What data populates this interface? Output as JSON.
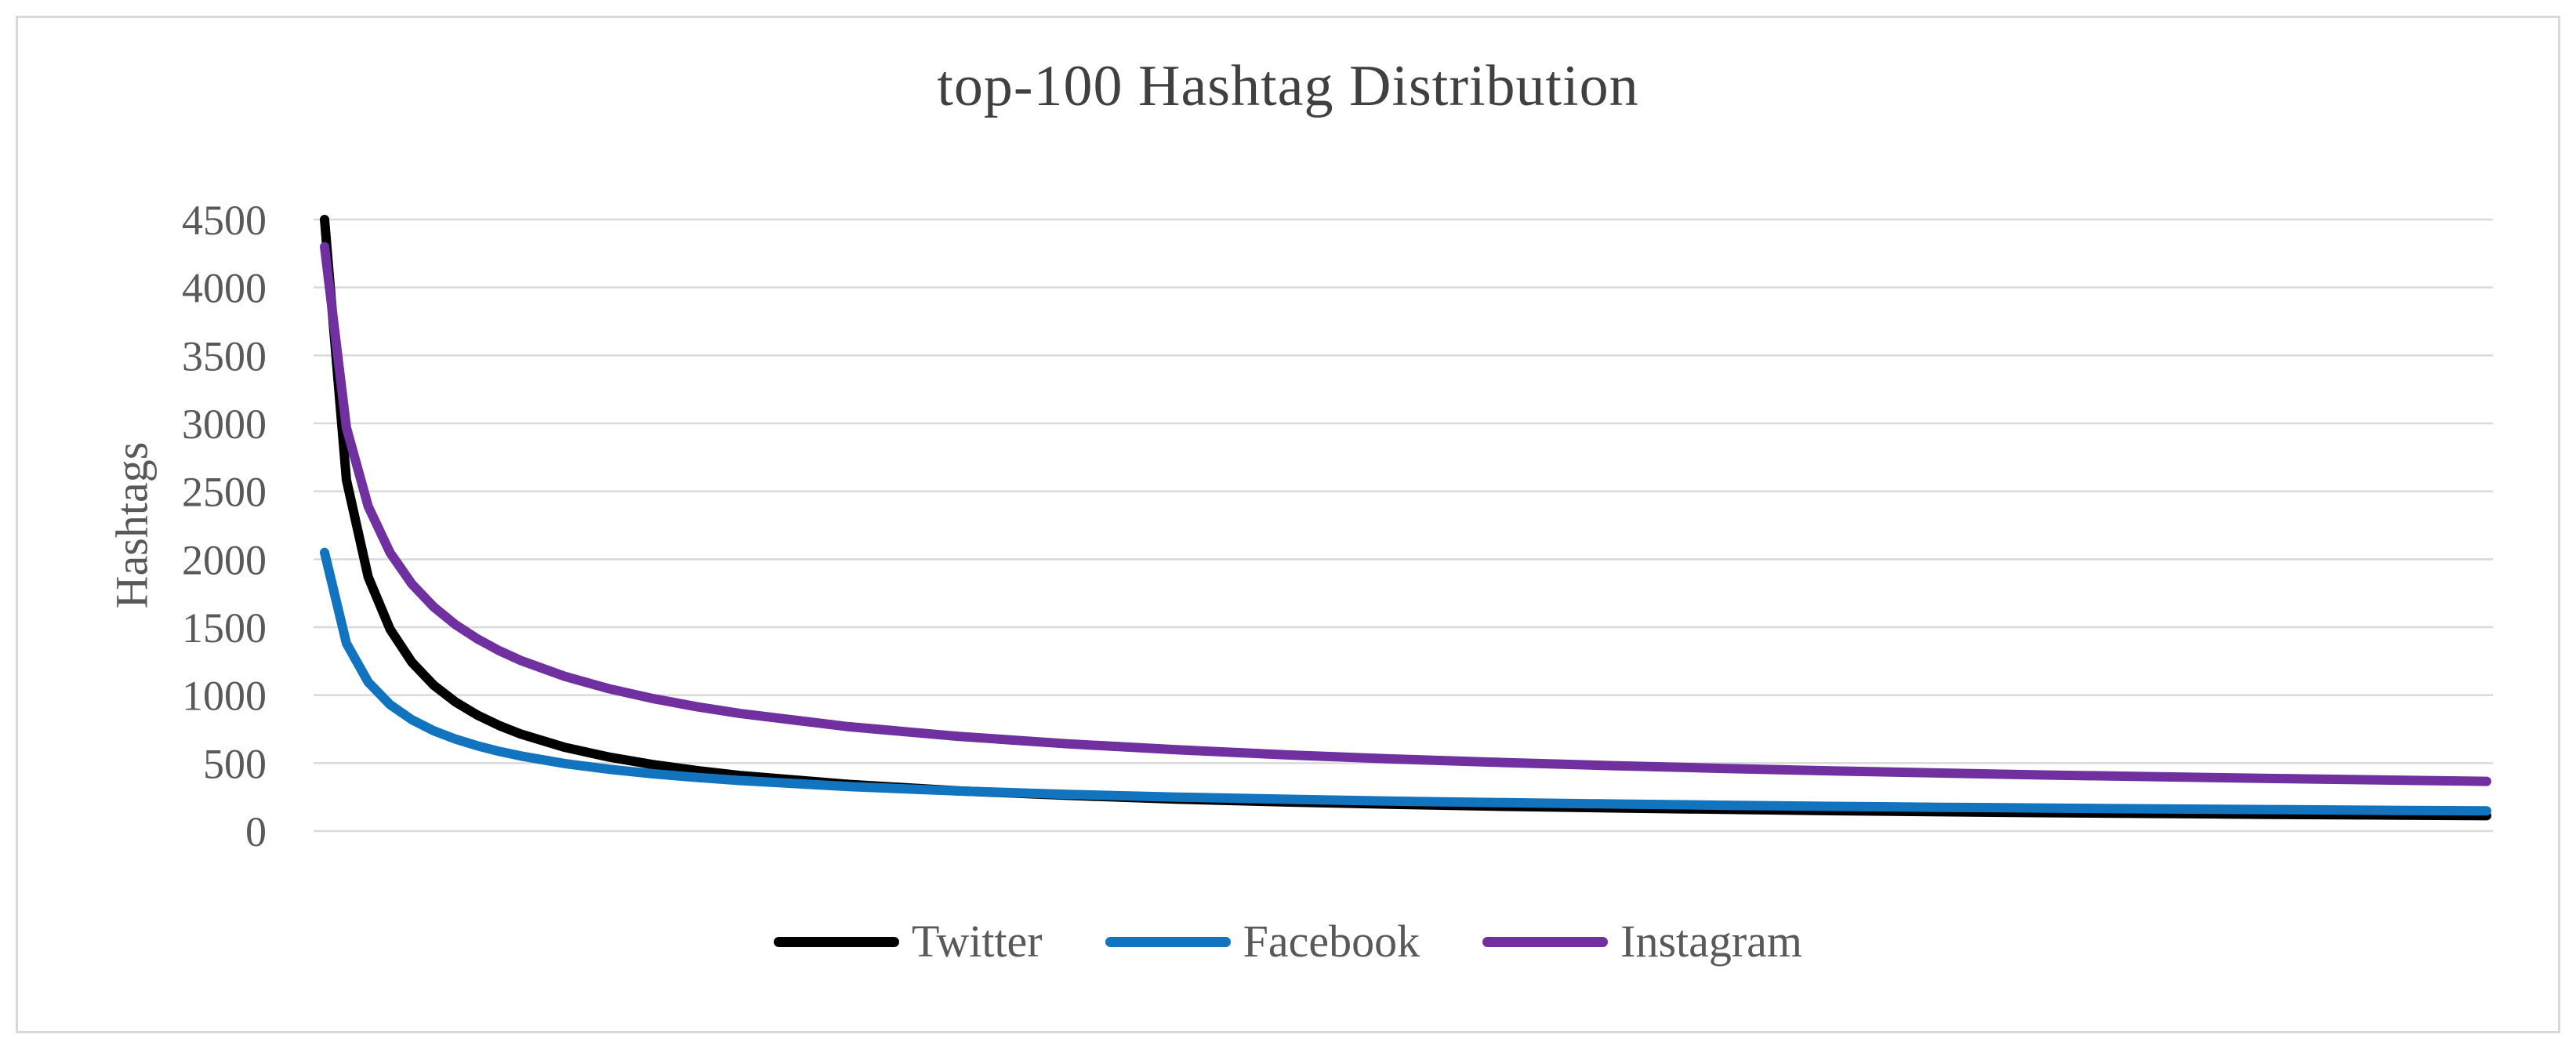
{
  "frame": {
    "background": "#ffffff",
    "border_color": "#d9d9d9"
  },
  "styles": {
    "title_color": "#404040",
    "text_color": "#595959",
    "gridline_color": "#d9d9d9",
    "line_width": 12
  },
  "chart_data": {
    "type": "line",
    "title": "top-100 Hashtag Distribution",
    "xlabel": "",
    "ylabel": "Hashtags",
    "grid": "horizontal",
    "legend_position": "bottom",
    "x_range": [
      1,
      100
    ],
    "x_tick_labels_visible": false,
    "ylim": [
      0,
      4500
    ],
    "y_ticks": [
      0,
      500,
      1000,
      1500,
      2000,
      2500,
      3000,
      3500,
      4000,
      4500
    ],
    "x": [
      1,
      2,
      3,
      4,
      5,
      6,
      7,
      8,
      9,
      10,
      12,
      14,
      16,
      18,
      20,
      25,
      30,
      35,
      40,
      45,
      50,
      55,
      60,
      65,
      70,
      75,
      80,
      85,
      90,
      95,
      100
    ],
    "series": [
      {
        "name": "Twitter",
        "color": "#000000",
        "values": [
          4500,
          2585,
          1869,
          1485,
          1242,
          1073,
          949,
          853,
          776,
          713,
          616,
          545,
          490,
          446,
          409,
          343,
          296,
          263,
          235,
          214,
          197,
          182,
          170,
          160,
          150,
          142,
          135,
          129,
          123,
          118,
          113
        ]
      },
      {
        "name": "Facebook",
        "color": "#1274be",
        "values": [
          2050,
          1381,
          1096,
          930,
          819,
          738,
          676,
          627,
          586,
          552,
          497,
          455,
          422,
          395,
          372,
          327,
          295,
          270,
          250,
          234,
          220,
          209,
          199,
          190,
          182,
          175,
          169,
          163,
          158,
          153,
          149
        ]
      },
      {
        "name": "Instagram",
        "color": "#7030a0",
        "values": [
          4300,
          2968,
          2389,
          2048,
          1818,
          1649,
          1518,
          1414,
          1327,
          1254,
          1138,
          1048,
          976,
          916,
          866,
          768,
          697,
          642,
          598,
          561,
          530,
          504,
          481,
          461,
          443,
          427,
          412,
          399,
          387,
          376,
          366
        ]
      }
    ]
  }
}
